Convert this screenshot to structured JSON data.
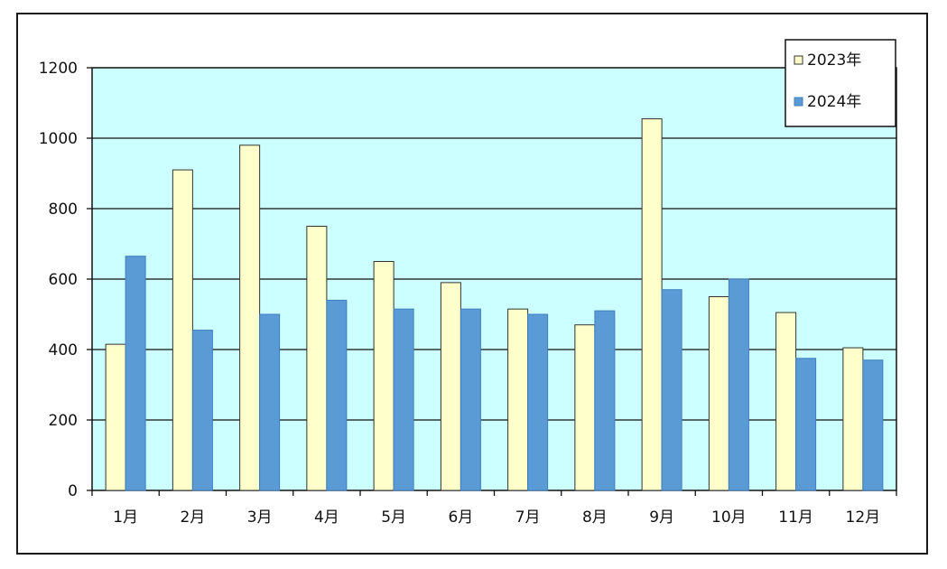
{
  "chart_data": {
    "type": "bar",
    "categories": [
      "1月",
      "2月",
      "3月",
      "4月",
      "5月",
      "6月",
      "7月",
      "8月",
      "9月",
      "10月",
      "11月",
      "12月"
    ],
    "series": [
      {
        "name": "2023年",
        "values": [
          415,
          910,
          980,
          750,
          650,
          590,
          515,
          470,
          1055,
          550,
          505,
          405
        ],
        "color": "#ffffcc"
      },
      {
        "name": "2024年",
        "values": [
          665,
          455,
          500,
          540,
          515,
          515,
          500,
          510,
          570,
          600,
          375,
          370
        ],
        "color": "#5b9bd5"
      }
    ],
    "ylim": [
      0,
      1200
    ],
    "yticks": [
      "0",
      "200",
      "400",
      "600",
      "800",
      "1000",
      "1200"
    ],
    "grid": true,
    "legend_position": "top-right",
    "plot_background": "#ccffff"
  }
}
